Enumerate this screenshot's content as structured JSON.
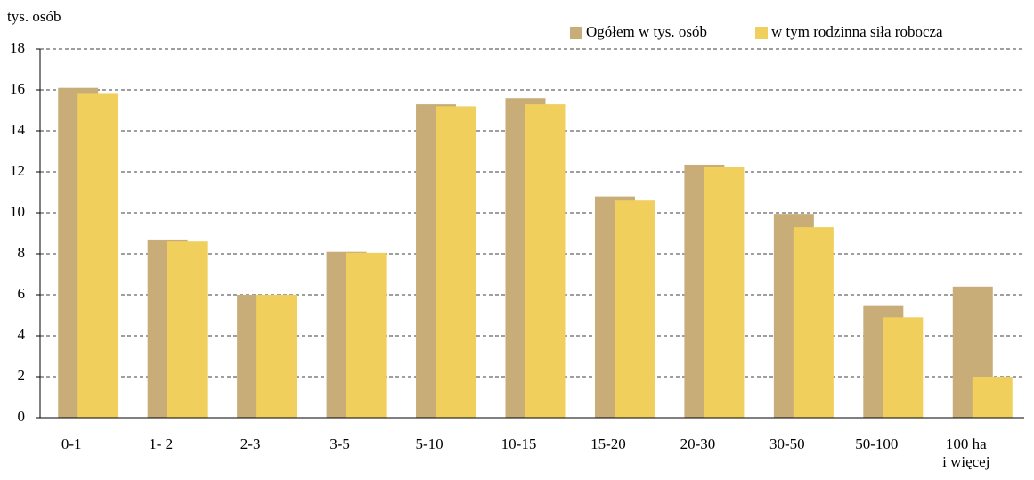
{
  "chart_data": {
    "type": "bar",
    "y_axis_label": "tys. osób",
    "categories": [
      "0-1",
      "1- 2",
      "2-3",
      "3-5",
      "5-10",
      "10-15",
      "15-20",
      "20-30",
      "30-50",
      "50-100",
      "100 ha\ni więcej"
    ],
    "series": [
      {
        "name": "Ogółem w tys. osób",
        "color": "#c9ad78",
        "values": [
          16.1,
          8.7,
          6.0,
          8.1,
          15.3,
          15.6,
          10.8,
          12.35,
          9.95,
          5.45,
          6.4
        ]
      },
      {
        "name": "w tym rodzinna siła robocza",
        "color": "#f0cf5c",
        "values": [
          15.85,
          8.6,
          6.0,
          8.05,
          15.2,
          15.3,
          10.6,
          12.25,
          9.3,
          4.9,
          2.0
        ]
      }
    ],
    "ylim": [
      0,
      18
    ],
    "yticks": [
      0,
      2,
      4,
      6,
      8,
      10,
      12,
      14,
      16,
      18
    ],
    "grid": true,
    "legend": "top-right"
  }
}
